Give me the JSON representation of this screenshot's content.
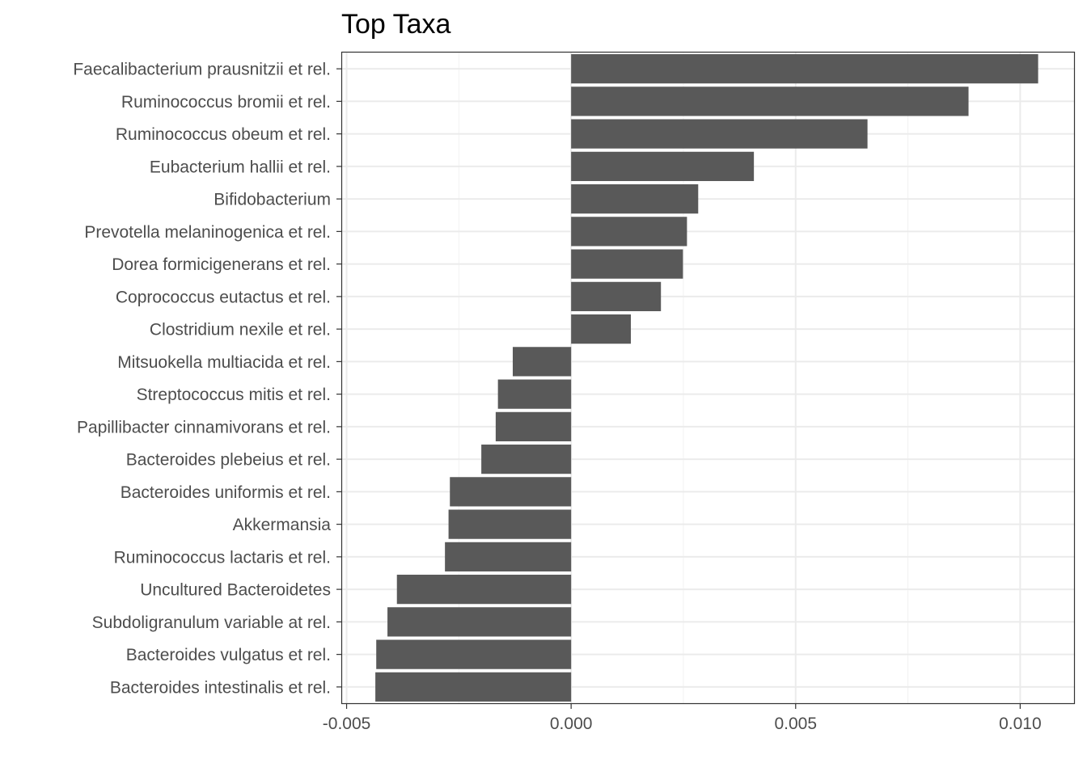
{
  "chart_data": {
    "type": "bar",
    "orientation": "horizontal",
    "title": "Top Taxa",
    "xlabel": "",
    "ylabel": "",
    "xlim": [
      -0.0051,
      0.0112
    ],
    "x_ticks": [
      -0.005,
      0.0,
      0.005,
      0.01
    ],
    "x_tick_labels": [
      "-0.005",
      "0.000",
      "0.005",
      "0.010"
    ],
    "grid": true,
    "legend": "none",
    "bar_color": "#595959",
    "categories": [
      "Faecalibacterium prausnitzii et rel.",
      "Ruminococcus bromii et rel.",
      "Ruminococcus obeum et rel.",
      "Eubacterium hallii et rel.",
      "Bifidobacterium",
      "Prevotella melaninogenica et rel.",
      "Dorea formicigenerans et rel.",
      "Coprococcus eutactus et rel.",
      "Clostridium nexile et rel.",
      "Mitsuokella multiacida et rel.",
      "Streptococcus mitis et rel.",
      "Papillibacter cinnamivorans et rel.",
      "Bacteroides plebeius et rel.",
      "Bacteroides uniformis et rel.",
      "Akkermansia",
      "Ruminococcus lactaris et rel.",
      "Uncultured Bacteroidetes",
      "Subdoligranulum variable at rel.",
      "Bacteroides vulgatus et rel.",
      "Bacteroides intestinalis et rel."
    ],
    "values": [
      0.0104,
      0.00885,
      0.0066,
      0.00407,
      0.00283,
      0.00258,
      0.00249,
      0.002,
      0.00133,
      -0.0013,
      -0.00163,
      -0.00168,
      -0.002,
      -0.0027,
      -0.00273,
      -0.00281,
      -0.00388,
      -0.00409,
      -0.00434,
      -0.00436
    ]
  }
}
